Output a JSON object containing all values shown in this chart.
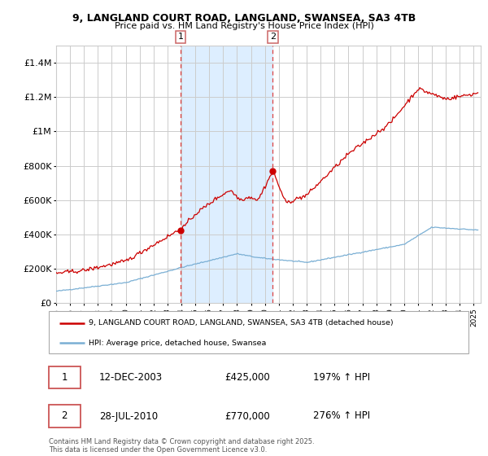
{
  "title": "9, LANGLAND COURT ROAD, LANGLAND, SWANSEA, SA3 4TB",
  "subtitle": "Price paid vs. HM Land Registry's House Price Index (HPI)",
  "sale1_date_str": "12-DEC-2003",
  "sale2_date_str": "28-JUL-2010",
  "sale1_price": 425000,
  "sale2_price": 770000,
  "sale1_hpi_pct": "197% ↑ HPI",
  "sale2_hpi_pct": "276% ↑ HPI",
  "sale1_x": 2003.95,
  "sale2_x": 2010.57,
  "legend_label_red": "9, LANGLAND COURT ROAD, LANGLAND, SWANSEA, SA3 4TB (detached house)",
  "legend_label_blue": "HPI: Average price, detached house, Swansea",
  "copyright": "Contains HM Land Registry data © Crown copyright and database right 2025.\nThis data is licensed under the Open Government Licence v3.0.",
  "red_color": "#cc0000",
  "blue_color": "#7aafd4",
  "background_color": "#ffffff",
  "grid_color": "#cccccc",
  "shade_color": "#ddeeff",
  "ylim": [
    0,
    1500000
  ],
  "xlim": [
    1995,
    2025.5
  ],
  "yticks": [
    0,
    200000,
    400000,
    600000,
    800000,
    1000000,
    1200000,
    1400000
  ],
  "ytick_labels": [
    "£0",
    "£200K",
    "£400K",
    "£600K",
    "£800K",
    "£1M",
    "£1.2M",
    "£1.4M"
  ]
}
